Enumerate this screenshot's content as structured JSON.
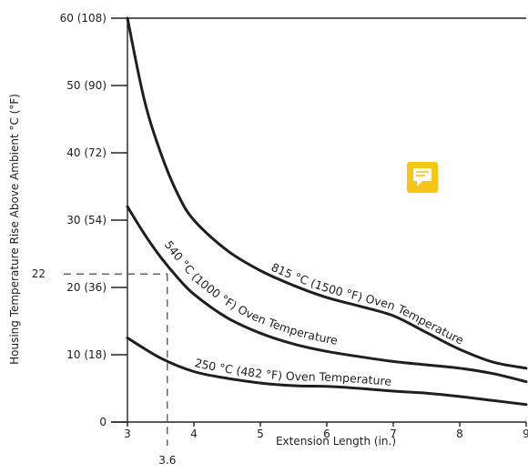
{
  "chart_data": {
    "type": "line",
    "xlabel": "Extension Length (in.)",
    "ylabel": "Housing Temperature Rise Above Ambient °C (°F)",
    "xlim": [
      3,
      9
    ],
    "ylim": [
      0,
      60
    ],
    "x_ticks": [
      "3",
      "4",
      "5",
      "6",
      "7",
      "8",
      "9"
    ],
    "y_ticks": [
      "0",
      "10 (18)",
      "20 (36)",
      "30 (54)",
      "40 (72)",
      "50 (90)",
      "60 (108)"
    ],
    "series": [
      {
        "name": "815 °C (1500 °F) Oven Temperature",
        "x": [
          3,
          3.25,
          3.5,
          3.75,
          4,
          4.5,
          5,
          5.5,
          6,
          6.5,
          7,
          7.5,
          8,
          8.5,
          9
        ],
        "y": [
          60,
          48,
          40,
          34,
          30,
          25.5,
          22.5,
          20.3,
          18.5,
          17.2,
          15.8,
          13.3,
          10.8,
          8.9,
          8
        ]
      },
      {
        "name": "540 °C (1000 °F) Oven Temperature",
        "x": [
          3,
          3.25,
          3.5,
          3.75,
          4,
          4.5,
          5,
          5.5,
          6,
          6.5,
          7,
          7.5,
          8,
          8.5,
          9
        ],
        "y": [
          32,
          28,
          24.5,
          21.5,
          19,
          15.5,
          13.2,
          11.6,
          10.5,
          9.7,
          9,
          8.5,
          8,
          7.2,
          6
        ]
      },
      {
        "name": "250 °C (482 °F) Oven Temperature",
        "x": [
          3,
          3.5,
          4,
          4.5,
          5,
          5.5,
          6,
          6.5,
          7,
          7.5,
          8,
          8.5,
          9
        ],
        "y": [
          12.5,
          9.5,
          7.5,
          6.5,
          5.8,
          5.4,
          5.3,
          5,
          4.6,
          4.3,
          3.8,
          3.2,
          2.6
        ]
      }
    ],
    "curve_labels": [
      {
        "text": "815 °C (1500 °F)  Oven Temperature",
        "at_x": 5.15,
        "series": 0
      },
      {
        "text": "540 °C (1000 °F)  Oven Temperature",
        "at_x": 3.55,
        "series": 1
      },
      {
        "text": "250 °C (482 °F)  Oven Temperature",
        "at_x": 4.0,
        "series": 2
      }
    ],
    "reference": {
      "x": 3.6,
      "y": 22,
      "x_label": "3.6",
      "y_label": "22"
    },
    "grid": false
  },
  "note_icon": {
    "name": "comment-icon",
    "color": "#f5c518"
  }
}
